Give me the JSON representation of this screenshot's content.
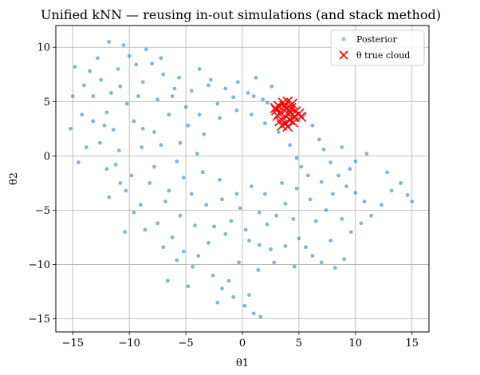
{
  "chart_data": {
    "type": "scatter",
    "title": "Unified kNN — reusing in-out simulations (and stack method)",
    "xlabel": "θ1",
    "ylabel": "θ2",
    "xlim": [
      -16.5,
      16.5
    ],
    "ylim": [
      -16.2,
      12.0
    ],
    "xticks": [
      -15,
      -10,
      -5,
      0,
      5,
      10,
      15
    ],
    "yticks": [
      -15,
      -10,
      -5,
      0,
      5,
      10
    ],
    "grid": true,
    "legend": {
      "position": "top-right",
      "entries": [
        {
          "label": "Posterior",
          "marker": "dot",
          "color": "#1f77b4"
        },
        {
          "label": "θ true cloud",
          "marker": "x",
          "color": "#ff0000"
        }
      ]
    },
    "series": [
      {
        "name": "Posterior",
        "marker": "dot",
        "color": "#1f77b4",
        "points": [
          [
            -11.8,
            10.5
          ],
          [
            -10.5,
            10.2
          ],
          [
            -8.5,
            9.8
          ],
          [
            -7.2,
            9.0
          ],
          [
            -9.4,
            8.4
          ],
          [
            -11.0,
            8.0
          ],
          [
            -13.5,
            7.8
          ],
          [
            -12.5,
            7.0
          ],
          [
            -10.8,
            6.4
          ],
          [
            -8.8,
            6.8
          ],
          [
            -7.5,
            5.2
          ],
          [
            -6.0,
            6.2
          ],
          [
            -14.0,
            6.5
          ],
          [
            -13.2,
            5.5
          ],
          [
            -12.0,
            4.0
          ],
          [
            -10.2,
            4.8
          ],
          [
            -15.0,
            5.5
          ],
          [
            -14.2,
            3.8
          ],
          [
            -11.4,
            2.4
          ],
          [
            -9.6,
            3.2
          ],
          [
            -7.8,
            2.2
          ],
          [
            -12.6,
            1.2
          ],
          [
            -10.9,
            0.5
          ],
          [
            -8.9,
            0.8
          ],
          [
            -7.2,
            1.0
          ],
          [
            -11.2,
            -0.8
          ],
          [
            -9.8,
            -1.8
          ],
          [
            -8.2,
            -2.5
          ],
          [
            -10.3,
            -3.2
          ],
          [
            -9.0,
            -4.5
          ],
          [
            -6.8,
            -4.2
          ],
          [
            -5.5,
            -5.5
          ],
          [
            -7.5,
            -6.2
          ],
          [
            -6.2,
            -7.5
          ],
          [
            -5.2,
            -8.8
          ],
          [
            -3.9,
            -9.2
          ],
          [
            -5.8,
            -9.6
          ],
          [
            -4.4,
            -10.2
          ],
          [
            -2.6,
            -11.0
          ],
          [
            -1.8,
            -12.2
          ],
          [
            -0.8,
            -13.0
          ],
          [
            0.2,
            -13.8
          ],
          [
            1.0,
            -14.5
          ],
          [
            1.6,
            -14.8
          ],
          [
            -1.2,
            -11.5
          ],
          [
            -3.0,
            -8.0
          ],
          [
            -1.5,
            -7.2
          ],
          [
            0.3,
            -6.8
          ],
          [
            1.5,
            -8.2
          ],
          [
            2.5,
            -8.6
          ],
          [
            3.8,
            -8.3
          ],
          [
            5.0,
            -7.6
          ],
          [
            6.2,
            -9.2
          ],
          [
            7.0,
            -9.8
          ],
          [
            8.2,
            -10.3
          ],
          [
            9.0,
            -9.5
          ],
          [
            7.8,
            -7.8
          ],
          [
            9.6,
            -7.0
          ],
          [
            10.5,
            -6.2
          ],
          [
            8.8,
            -5.8
          ],
          [
            6.5,
            -6.0
          ],
          [
            4.5,
            -5.8
          ],
          [
            3.0,
            -5.5
          ],
          [
            1.5,
            -5.2
          ],
          [
            -0.2,
            -4.8
          ],
          [
            -1.8,
            -4.0
          ],
          [
            -3.2,
            -4.5
          ],
          [
            -4.5,
            -3.5
          ],
          [
            -5.2,
            -2.0
          ],
          [
            -5.8,
            -0.5
          ],
          [
            -5.5,
            1.2
          ],
          [
            -4.8,
            2.8
          ],
          [
            -3.8,
            3.8
          ],
          [
            -2.2,
            4.8
          ],
          [
            -0.8,
            5.4
          ],
          [
            0.5,
            5.8
          ],
          [
            1.8,
            5.2
          ],
          [
            2.2,
            4.9
          ],
          [
            1.0,
            5.5
          ],
          [
            -1.5,
            6.2
          ],
          [
            -3.0,
            6.5
          ],
          [
            -4.5,
            6.0
          ],
          [
            -6.2,
            5.5
          ],
          [
            -2.8,
            7.0
          ],
          [
            -0.4,
            6.8
          ],
          [
            1.2,
            7.2
          ],
          [
            2.6,
            6.4
          ],
          [
            5.5,
            3.8
          ],
          [
            6.2,
            2.8
          ],
          [
            6.8,
            1.5
          ],
          [
            7.2,
            0.6
          ],
          [
            7.8,
            -0.6
          ],
          [
            8.5,
            -1.8
          ],
          [
            9.2,
            -2.8
          ],
          [
            10.0,
            -3.4
          ],
          [
            10.8,
            -4.2
          ],
          [
            11.4,
            -5.5
          ],
          [
            12.3,
            -4.5
          ],
          [
            13.2,
            -3.2
          ],
          [
            14.0,
            -2.5
          ],
          [
            14.6,
            -3.6
          ],
          [
            15.0,
            -4.2
          ],
          [
            12.8,
            -1.5
          ],
          [
            11.0,
            0.2
          ],
          [
            10.0,
            -0.5
          ],
          [
            8.8,
            0.8
          ],
          [
            9.5,
            -1.2
          ],
          [
            7.0,
            -2.4
          ],
          [
            5.8,
            -1.8
          ],
          [
            4.8,
            -3.0
          ],
          [
            3.5,
            -2.5
          ],
          [
            2.0,
            -3.5
          ],
          [
            0.8,
            -2.8
          ],
          [
            -0.5,
            -3.5
          ],
          [
            -2.0,
            -2.2
          ],
          [
            -3.5,
            -1.5
          ],
          [
            -4.0,
            0.2
          ],
          [
            -3.4,
            2.0
          ],
          [
            -2.0,
            3.5
          ],
          [
            -0.5,
            4.2
          ],
          [
            0.8,
            3.8
          ],
          [
            2.0,
            3.0
          ],
          [
            3.2,
            2.2
          ],
          [
            4.2,
            1.0
          ],
          [
            4.8,
            -0.2
          ],
          [
            5.2,
            -1.0
          ],
          [
            3.8,
            -4.4
          ],
          [
            2.2,
            -6.3
          ],
          [
            0.6,
            -7.8
          ],
          [
            -1.0,
            -6.0
          ],
          [
            -2.5,
            -6.5
          ],
          [
            -4.2,
            -6.4
          ],
          [
            -6.5,
            -3.2
          ],
          [
            -7.8,
            -1.0
          ],
          [
            -8.8,
            2.5
          ],
          [
            -6.5,
            3.8
          ],
          [
            -5.0,
            4.5
          ],
          [
            -13.8,
            0.8
          ],
          [
            -12.2,
            2.8
          ],
          [
            -9.2,
            5.5
          ],
          [
            -7.0,
            7.5
          ],
          [
            -11.6,
            5.8
          ],
          [
            -8.0,
            8.5
          ],
          [
            -5.6,
            7.2
          ],
          [
            -3.8,
            8.0
          ],
          [
            -10.0,
            9.2
          ],
          [
            -12.8,
            9.0
          ],
          [
            -14.8,
            8.2
          ],
          [
            -6.6,
            -11.5
          ],
          [
            -4.8,
            -12.0
          ],
          [
            -2.2,
            -13.5
          ],
          [
            0.6,
            -12.8
          ],
          [
            -0.3,
            -9.8
          ],
          [
            1.4,
            -10.5
          ],
          [
            2.8,
            -9.8
          ],
          [
            4.6,
            -10.2
          ],
          [
            5.6,
            -8.4
          ],
          [
            7.4,
            -5.0
          ],
          [
            8.0,
            -3.5
          ],
          [
            6.0,
            -4.0
          ],
          [
            -8.6,
            -6.8
          ],
          [
            -7.0,
            -8.4
          ],
          [
            -9.6,
            -5.2
          ],
          [
            -10.8,
            -2.5
          ],
          [
            -12.0,
            -1.2
          ],
          [
            -13.2,
            3.2
          ],
          [
            -15.2,
            2.5
          ],
          [
            -14.5,
            -0.6
          ],
          [
            -11.8,
            -3.8
          ],
          [
            -10.4,
            -7.0
          ]
        ]
      },
      {
        "name": "θ true cloud",
        "marker": "x",
        "color": "#ff0000",
        "points": [
          [
            3.2,
            4.6
          ],
          [
            3.6,
            4.9
          ],
          [
            4.0,
            5.0
          ],
          [
            4.4,
            4.8
          ],
          [
            3.0,
            4.2
          ],
          [
            3.4,
            4.0
          ],
          [
            3.9,
            4.3
          ],
          [
            4.3,
            4.4
          ],
          [
            4.7,
            4.1
          ],
          [
            3.1,
            3.7
          ],
          [
            3.6,
            3.5
          ],
          [
            4.1,
            3.8
          ],
          [
            4.6,
            3.6
          ],
          [
            5.0,
            3.9
          ],
          [
            3.3,
            3.2
          ],
          [
            3.8,
            3.0
          ],
          [
            4.2,
            3.3
          ],
          [
            4.5,
            3.1
          ],
          [
            3.5,
            2.8
          ],
          [
            4.0,
            2.7
          ],
          [
            5.2,
            3.6
          ],
          [
            2.9,
            4.4
          ],
          [
            3.7,
            4.6
          ],
          [
            4.2,
            4.1
          ]
        ]
      }
    ]
  }
}
